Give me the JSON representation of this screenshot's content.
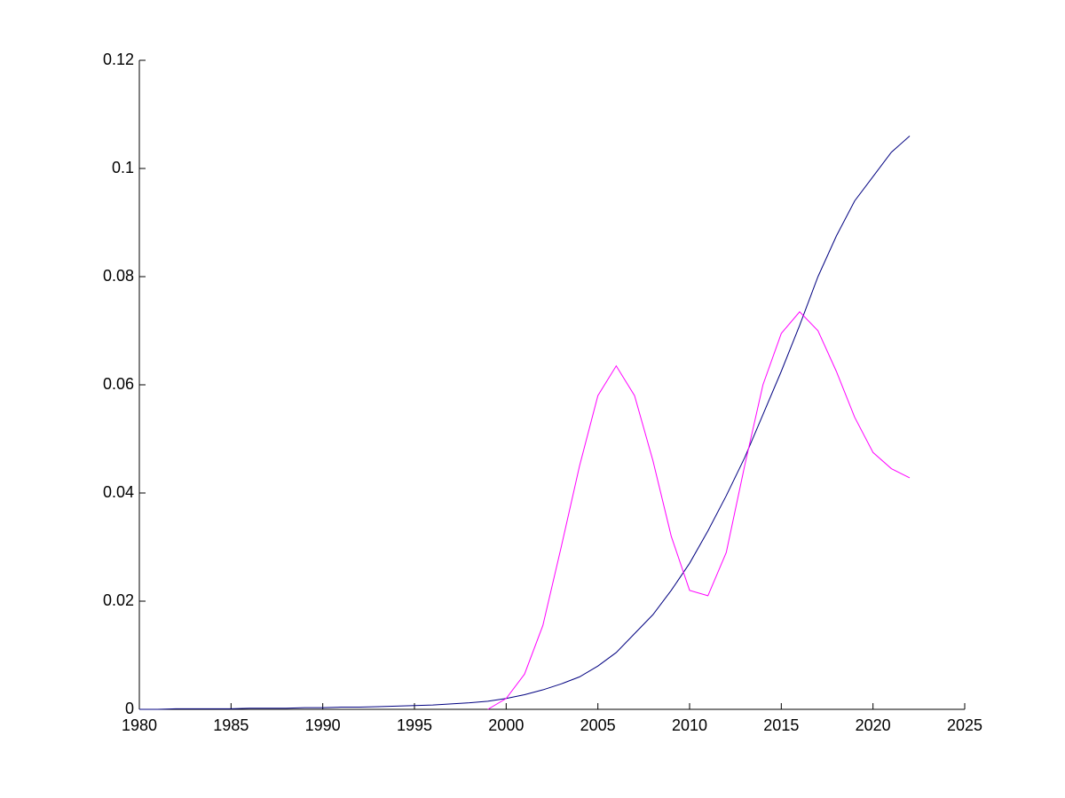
{
  "chart_data": {
    "type": "line",
    "x": [
      1980,
      1981,
      1982,
      1983,
      1984,
      1985,
      1986,
      1987,
      1988,
      1989,
      1990,
      1991,
      1992,
      1993,
      1994,
      1995,
      1996,
      1997,
      1998,
      1999,
      2000,
      2001,
      2002,
      2003,
      2004,
      2005,
      2006,
      2007,
      2008,
      2009,
      2010,
      2011,
      2012,
      2013,
      2014,
      2015,
      2016,
      2017,
      2018,
      2019,
      2020,
      2021,
      2022
    ],
    "series": [
      {
        "color": "#000080",
        "values": [
          0,
          0,
          0.0001,
          0.0001,
          0.0001,
          0.0001,
          0.0002,
          0.0002,
          0.0002,
          0.0003,
          0.0003,
          0.0004,
          0.0004,
          0.0005,
          0.0006,
          0.0007,
          0.0008,
          0.001,
          0.0012,
          0.0015,
          0.002,
          0.0027,
          0.0036,
          0.0047,
          0.006,
          0.008,
          0.0105,
          0.014,
          0.0175,
          0.022,
          0.027,
          0.033,
          0.0395,
          0.0465,
          0.0545,
          0.0625,
          0.071,
          0.08,
          0.0875,
          0.094,
          0.0985,
          0.103,
          0.106
        ]
      },
      {
        "color": "#ff00ff",
        "values": [
          null,
          null,
          null,
          null,
          null,
          null,
          null,
          null,
          null,
          null,
          null,
          null,
          null,
          null,
          null,
          null,
          null,
          null,
          null,
          0,
          0.002,
          0.0065,
          0.0155,
          0.03,
          0.045,
          0.058,
          0.0635,
          0.058,
          0.046,
          0.032,
          0.022,
          0.021,
          0.029,
          0.045,
          0.06,
          0.0695,
          0.0735,
          0.07,
          0.0625,
          0.054,
          0.0475,
          0.0445,
          0.0428
        ]
      }
    ],
    "xlim": [
      1980,
      2025
    ],
    "xticks": [
      1980,
      1985,
      1990,
      1995,
      2000,
      2005,
      2010,
      2015,
      2020,
      2025
    ],
    "ylim": [
      0,
      0.12
    ],
    "yticks": [
      0,
      0.02,
      0.04,
      0.06,
      0.08,
      0.1,
      0.12
    ],
    "grid": false
  }
}
